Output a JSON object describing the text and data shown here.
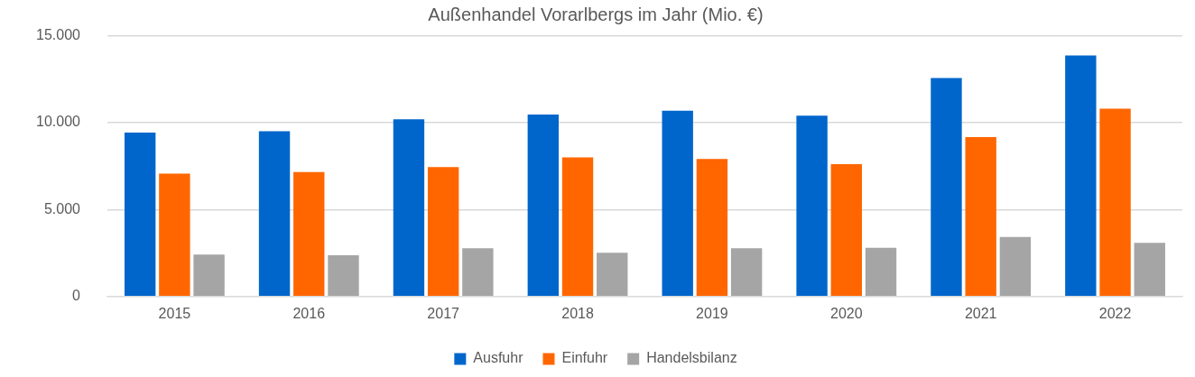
{
  "chart_data": {
    "type": "bar",
    "title": "Außenhandel Vorarlbergs im Jahr (Mio. €)",
    "categories": [
      "2015",
      "2016",
      "2017",
      "2018",
      "2019",
      "2020",
      "2021",
      "2022"
    ],
    "series": [
      {
        "name": "Ausfuhr",
        "color": "#0066cc",
        "values": [
          9430,
          9510,
          10200,
          10470,
          10690,
          10400,
          12570,
          13870
        ]
      },
      {
        "name": "Einfuhr",
        "color": "#ff6600",
        "values": [
          7070,
          7160,
          7450,
          8000,
          7910,
          7620,
          9170,
          10810
        ]
      },
      {
        "name": "Handelsbilanz",
        "color": "#a5a5a5",
        "values": [
          2410,
          2370,
          2780,
          2520,
          2780,
          2800,
          3420,
          3090
        ]
      }
    ],
    "ylim": [
      0,
      15000
    ],
    "yticks": [
      {
        "value": 0,
        "label": "0"
      },
      {
        "value": 5000,
        "label": "5.000"
      },
      {
        "value": 10000,
        "label": "10.000"
      },
      {
        "value": 15000,
        "label": "15.000"
      }
    ],
    "grid": "y",
    "legend": "bottom"
  }
}
